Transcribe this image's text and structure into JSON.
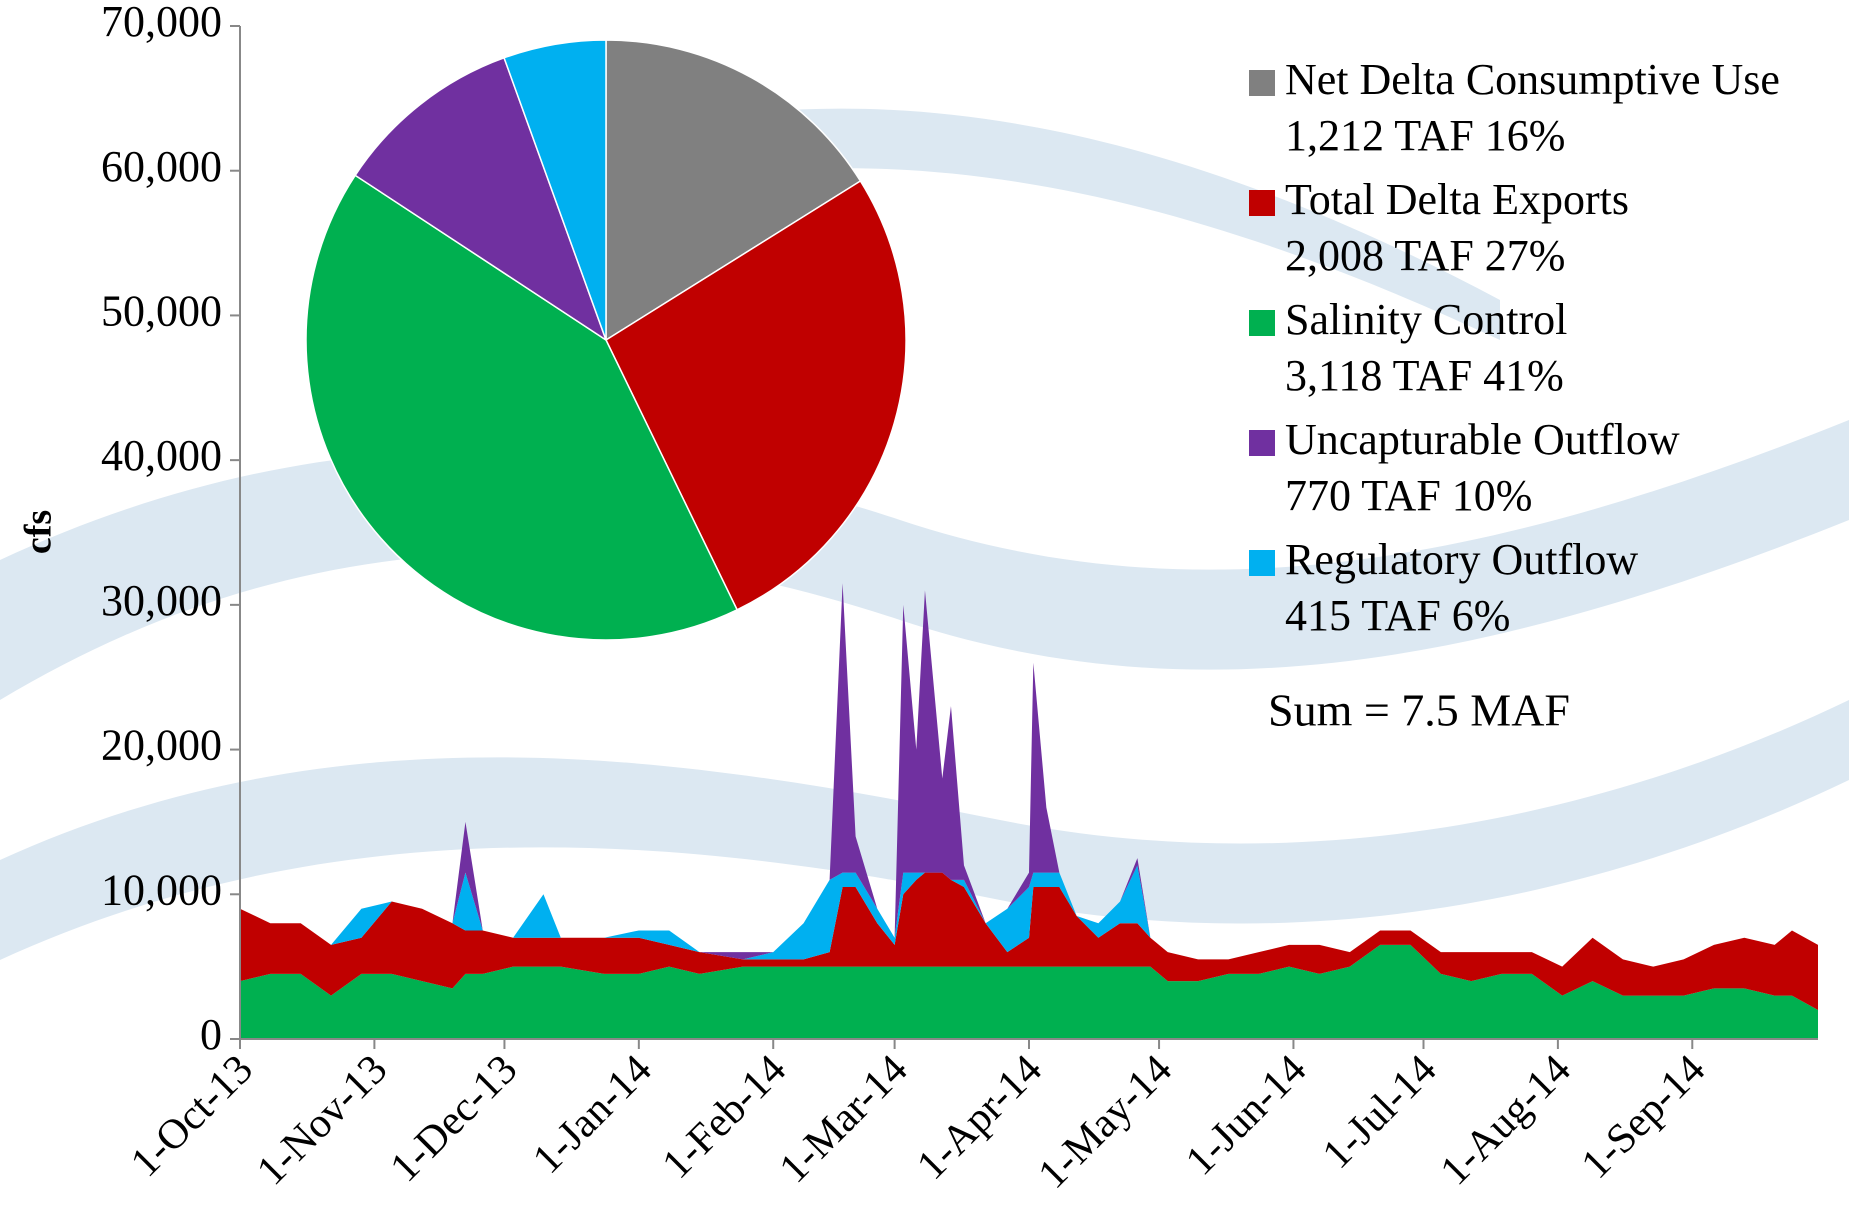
{
  "chart_data": [
    {
      "type": "area",
      "stacked": true,
      "y_label": "cfs",
      "x": [
        "2013-10-01",
        "2013-10-08",
        "2013-10-15",
        "2013-10-22",
        "2013-10-29",
        "2013-11-05",
        "2013-11-12",
        "2013-11-19",
        "2013-11-22",
        "2013-11-26",
        "2013-12-03",
        "2013-12-10",
        "2013-12-14",
        "2013-12-24",
        "2014-01-01",
        "2014-01-08",
        "2014-01-15",
        "2014-01-25",
        "2014-02-01",
        "2014-02-08",
        "2014-02-14",
        "2014-02-17",
        "2014-02-20",
        "2014-02-25",
        "2014-03-01",
        "2014-03-03",
        "2014-03-06",
        "2014-03-08",
        "2014-03-12",
        "2014-03-14",
        "2014-03-17",
        "2014-03-22",
        "2014-03-27",
        "2014-04-01",
        "2014-04-02",
        "2014-04-05",
        "2014-04-08",
        "2014-04-12",
        "2014-04-17",
        "2014-04-22",
        "2014-04-26",
        "2014-04-29",
        "2014-05-03",
        "2014-05-10",
        "2014-05-17",
        "2014-05-24",
        "2014-05-31",
        "2014-06-07",
        "2014-06-14",
        "2014-06-21",
        "2014-06-28",
        "2014-07-05",
        "2014-07-12",
        "2014-07-19",
        "2014-07-26",
        "2014-08-02",
        "2014-08-09",
        "2014-08-16",
        "2014-08-23",
        "2014-08-30",
        "2014-09-06",
        "2014-09-13",
        "2014-09-20",
        "2014-09-24",
        "2014-09-30"
      ],
      "series": [
        {
          "name": "Salinity Control",
          "color": "#00b050",
          "values": [
            4000,
            4500,
            4500,
            3000,
            4500,
            4500,
            4000,
            3500,
            4500,
            4500,
            5000,
            5000,
            5000,
            4500,
            4500,
            5000,
            4500,
            5000,
            5000,
            5000,
            5000,
            5000,
            5000,
            5000,
            5000,
            5000,
            5000,
            5000,
            5000,
            5000,
            5000,
            5000,
            5000,
            5000,
            5000,
            5000,
            5000,
            5000,
            5000,
            5000,
            5000,
            5000,
            4000,
            4000,
            4500,
            4500,
            5000,
            4500,
            5000,
            6500,
            6500,
            4500,
            4000,
            4500,
            4500,
            3000,
            4000,
            3000,
            3000,
            3000,
            3500,
            3500,
            3000,
            3000,
            2000
          ]
        },
        {
          "name": "Total Delta Exports",
          "color": "#c00000",
          "values": [
            5000,
            3500,
            3500,
            3500,
            2500,
            5000,
            5000,
            4500,
            3000,
            3000,
            2000,
            2000,
            2000,
            2500,
            2500,
            1500,
            1500,
            500,
            500,
            500,
            1000,
            5500,
            5500,
            3000,
            1500,
            5000,
            6000,
            6500,
            6500,
            6000,
            5500,
            3000,
            1000,
            2000,
            5500,
            5500,
            5500,
            3500,
            2000,
            3000,
            3000,
            2000,
            2000,
            1500,
            1000,
            1500,
            1500,
            2000,
            1000,
            1000,
            1000,
            1500,
            2000,
            1500,
            1500,
            2000,
            3000,
            2500,
            2000,
            2500,
            3000,
            3500,
            3500,
            4500,
            4500
          ]
        },
        {
          "name": "Regulatory Outflow",
          "color": "#00b0f0",
          "values": [
            0,
            0,
            0,
            0,
            2000,
            0,
            0,
            0,
            4000,
            0,
            0,
            3000,
            0,
            0,
            500,
            1000,
            0,
            0,
            500,
            2500,
            5000,
            1000,
            1000,
            1000,
            500,
            1500,
            500,
            0,
            0,
            0,
            500,
            0,
            3000,
            3500,
            1000,
            1000,
            1000,
            0,
            1000,
            1500,
            4000,
            0,
            0,
            0,
            0,
            0,
            0,
            0,
            0,
            0,
            0,
            0,
            0,
            0,
            0,
            0,
            0,
            0,
            0,
            0,
            0,
            0,
            0,
            0,
            0
          ]
        },
        {
          "name": "Uncapturable Outflow",
          "color": "#7030a0",
          "values": [
            0,
            0,
            0,
            0,
            0,
            0,
            0,
            0,
            3500,
            0,
            0,
            0,
            0,
            0,
            0,
            0,
            0,
            500,
            0,
            0,
            0,
            20000,
            2500,
            0,
            0,
            18500,
            8500,
            19500,
            6500,
            12000,
            1000,
            0,
            0,
            1000,
            14500,
            4500,
            0,
            0,
            0,
            0,
            500,
            0,
            0,
            0,
            0,
            0,
            0,
            0,
            0,
            0,
            0,
            0,
            0,
            0,
            0,
            0,
            0,
            0,
            0,
            0,
            0,
            0,
            0,
            0,
            0
          ]
        }
      ],
      "xlim": [
        "2013-10-01",
        "2014-09-30"
      ],
      "xticks": [
        {
          "value": "2013-10-01",
          "label": "1-Oct-13"
        },
        {
          "value": "2013-11-01",
          "label": "1-Nov-13"
        },
        {
          "value": "2013-12-01",
          "label": "1-Dec-13"
        },
        {
          "value": "2014-01-01",
          "label": "1-Jan-14"
        },
        {
          "value": "2014-02-01",
          "label": "1-Feb-14"
        },
        {
          "value": "2014-03-01",
          "label": "1-Mar-14"
        },
        {
          "value": "2014-04-01",
          "label": "1-Apr-14"
        },
        {
          "value": "2014-05-01",
          "label": "1-May-14"
        },
        {
          "value": "2014-06-01",
          "label": "1-Jun-14"
        },
        {
          "value": "2014-07-01",
          "label": "1-Jul-14"
        },
        {
          "value": "2014-08-01",
          "label": "1-Aug-14"
        },
        {
          "value": "2014-09-01",
          "label": "1-Sep-14"
        }
      ],
      "ylim": [
        0,
        70000
      ],
      "yticks": [
        0,
        {
          "value": 10000,
          "label": "10,000"
        },
        {
          "value": 20000,
          "label": "20,000"
        },
        {
          "value": 30000,
          "label": "30,000"
        },
        {
          "value": 40000,
          "label": "40,000"
        },
        {
          "value": 50000,
          "label": "50,000"
        },
        {
          "value": 60000,
          "label": "60,000"
        },
        {
          "value": 70000,
          "label": "70,000"
        }
      ],
      "grid": false
    },
    {
      "type": "pie",
      "legend": "right",
      "categories": [
        "Net Delta Consumptive Use",
        "Total Delta Exports",
        "Salinity Control",
        "Uncapturable Outflow",
        "Regulatory Outflow"
      ],
      "values": [
        1212,
        2008,
        3118,
        770,
        415
      ],
      "value_labels": [
        "1,212 TAF 16%",
        "2,008 TAF 27%",
        "3,118 TAF 41%",
        "770 TAF 10%",
        "415 TAF 6%"
      ],
      "colors": [
        "#808080",
        "#c00000",
        "#00b050",
        "#7030a0",
        "#00b0f0"
      ],
      "annotation": "Sum = 7.5 MAF"
    }
  ]
}
